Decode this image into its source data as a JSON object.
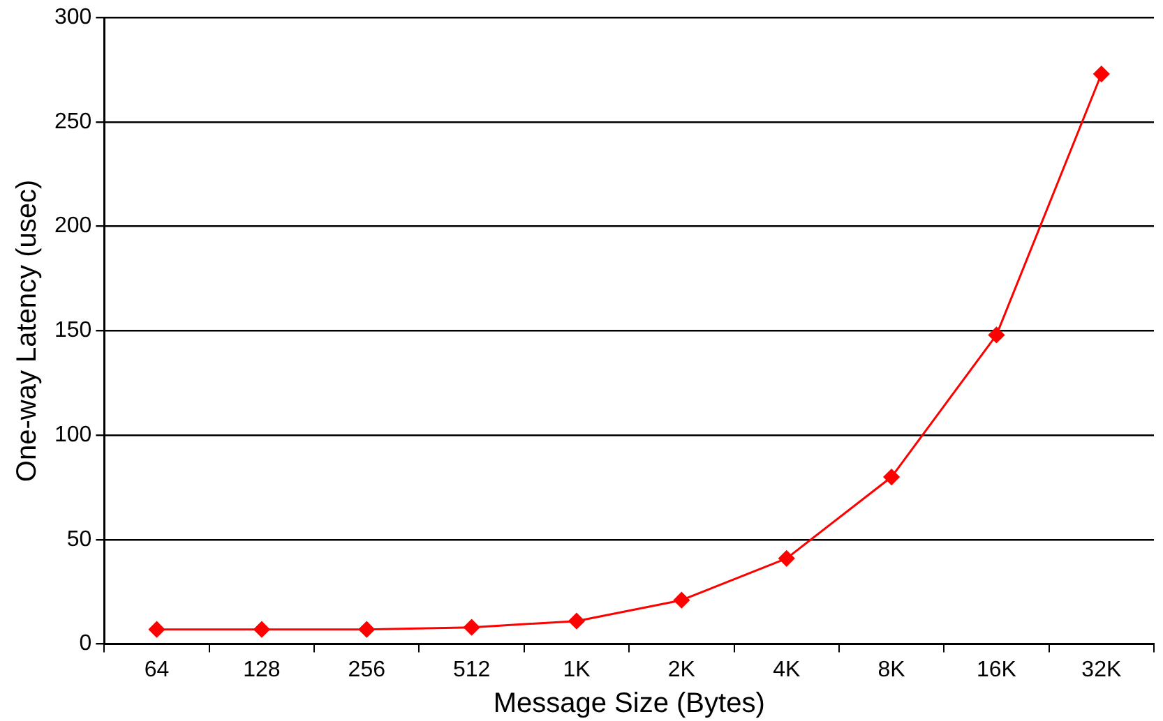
{
  "chart_data": {
    "type": "line",
    "xlabel": "Message Size (Bytes)",
    "ylabel": "One-way Latency (usec)",
    "categories": [
      "64",
      "128",
      "256",
      "512",
      "1K",
      "2K",
      "4K",
      "8K",
      "16K",
      "32K"
    ],
    "series": [
      {
        "color": "#ff0000",
        "values": [
          7,
          7,
          7,
          8,
          11,
          21,
          41,
          80,
          148,
          273
        ]
      }
    ],
    "ylim": [
      0,
      300
    ],
    "yticks": [
      0,
      50,
      100,
      150,
      200,
      250,
      300
    ],
    "grid": "y",
    "legend": false,
    "marker": "diamond",
    "line_style": "solid"
  }
}
